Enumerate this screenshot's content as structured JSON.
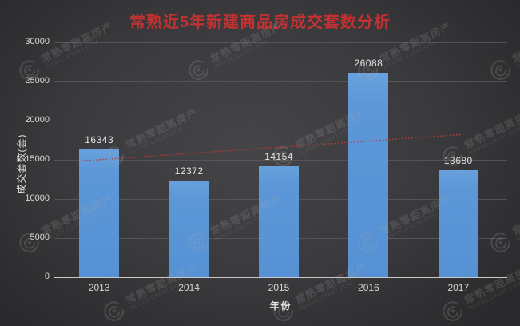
{
  "window": {
    "kind": "static-chart-image"
  },
  "title": "常熟近5年新建商品房成交套数分析",
  "chart_data": {
    "type": "bar",
    "title": "常熟近5年新建商品房成交套数分析",
    "categories": [
      "2013",
      "2014",
      "2015",
      "2016",
      "2017"
    ],
    "values": [
      16343,
      12372,
      14154,
      26088,
      13680
    ],
    "xlabel": "年份",
    "ylabel": "成交套数(套)",
    "ylim": [
      0,
      30000
    ],
    "yticks": [
      0,
      5000,
      10000,
      15000,
      20000,
      25000,
      30000
    ],
    "grid": true,
    "legend": false,
    "bar_color": "#5c97d8",
    "title_color": "#c23232",
    "value_labels_shown": true,
    "trendline": {
      "type": "linear",
      "style": "dotted",
      "color": "#bf3a30",
      "start_value": 14850,
      "end_value": 18210
    }
  },
  "watermark": {
    "line1": "常熟零距离房产",
    "line2": "HOUSE.CS090.COM"
  },
  "colors": {
    "background_center": "#454548",
    "background_edge": "#2a2a2c",
    "grid_line": "#5d5d61",
    "axis_line": "#c9c9c9",
    "tick_text": "#d9d9d9",
    "value_text": "#e3e3e3",
    "bar": "#5c97d8",
    "title": "#c23232",
    "trend": "#bf3a30",
    "watermark": "#9f9f9f"
  }
}
